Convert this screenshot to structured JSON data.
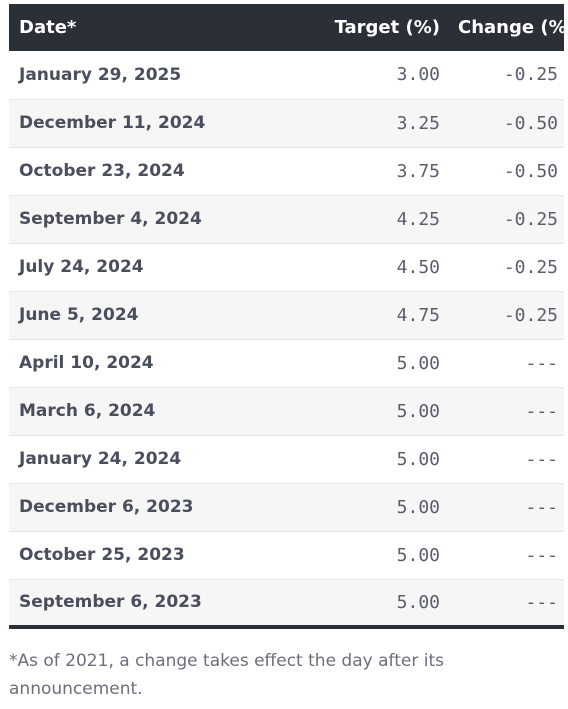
{
  "table": {
    "headers": {
      "date": "Date*",
      "target": "Target (%)",
      "change": "Change (%)"
    },
    "rows": [
      {
        "date": "January 29, 2025",
        "target": "3.00",
        "change": "-0.25"
      },
      {
        "date": "December 11, 2024",
        "target": "3.25",
        "change": "-0.50"
      },
      {
        "date": "October 23, 2024",
        "target": "3.75",
        "change": "-0.50"
      },
      {
        "date": "September 4, 2024",
        "target": "4.25",
        "change": "-0.25"
      },
      {
        "date": "July 24, 2024",
        "target": "4.50",
        "change": "-0.25"
      },
      {
        "date": "June 5, 2024",
        "target": "4.75",
        "change": "-0.25"
      },
      {
        "date": "April 10, 2024",
        "target": "5.00",
        "change": "---"
      },
      {
        "date": "March 6, 2024",
        "target": "5.00",
        "change": "---"
      },
      {
        "date": "January 24, 2024",
        "target": "5.00",
        "change": "---"
      },
      {
        "date": "December 6, 2023",
        "target": "5.00",
        "change": "---"
      },
      {
        "date": "October 25, 2023",
        "target": "5.00",
        "change": "---"
      },
      {
        "date": "September 6, 2023",
        "target": "5.00",
        "change": "---"
      }
    ]
  },
  "footnote": "*As of 2021, a change takes effect the day after its announcement.",
  "colors": {
    "header_bg": "#2b2f38",
    "header_text": "#ffffff",
    "row_alt_bg": "#f6f6f6",
    "date_text": "#4a4f5e",
    "number_text": "#5a5f6e"
  }
}
